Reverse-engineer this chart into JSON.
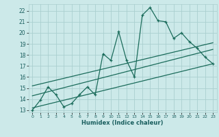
{
  "title": "",
  "xlabel": "Humidex (Indice chaleur)",
  "xlim": [
    -0.5,
    23.5
  ],
  "ylim": [
    12.8,
    22.6
  ],
  "yticks": [
    13,
    14,
    15,
    16,
    17,
    18,
    19,
    20,
    21,
    22
  ],
  "xticks": [
    0,
    1,
    2,
    3,
    4,
    5,
    6,
    7,
    8,
    9,
    10,
    11,
    12,
    13,
    14,
    15,
    16,
    17,
    18,
    19,
    20,
    21,
    22,
    23
  ],
  "bg_color": "#cce9e9",
  "grid_color": "#aacfcf",
  "line_color": "#1a6b5a",
  "line1_x": [
    0,
    1,
    2,
    3,
    4,
    5,
    6,
    7,
    8,
    9,
    10,
    11,
    12,
    13,
    14,
    15,
    16,
    17,
    18,
    19,
    20,
    21,
    22,
    23
  ],
  "line1_y": [
    13.0,
    13.9,
    15.1,
    14.4,
    13.3,
    13.6,
    14.4,
    15.1,
    14.4,
    18.1,
    17.5,
    20.1,
    17.5,
    16.0,
    21.6,
    22.3,
    21.1,
    21.0,
    19.5,
    20.0,
    19.2,
    18.6,
    17.8,
    17.2
  ],
  "trend1_x": [
    0,
    23
  ],
  "trend1_y": [
    13.2,
    17.2
  ],
  "trend2_x": [
    0,
    23
  ],
  "trend2_y": [
    14.3,
    18.5
  ],
  "trend3_x": [
    0,
    23
  ],
  "trend3_y": [
    15.2,
    19.1
  ]
}
